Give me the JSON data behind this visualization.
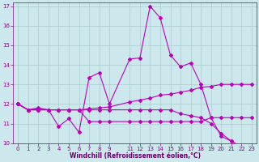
{
  "xlabel": "Windchill (Refroidissement éolien,°C)",
  "background_color": "#cce8ec",
  "line_color": "#bb00bb",
  "grid_color": "#aacccc",
  "xlim": [
    -0.5,
    23.5
  ],
  "ylim": [
    10,
    17.2
  ],
  "yticks": [
    10,
    11,
    12,
    13,
    14,
    15,
    16,
    17
  ],
  "xtick_positions": [
    0,
    1,
    2,
    3,
    4,
    5,
    6,
    7,
    8,
    9,
    11,
    12,
    13,
    14,
    15,
    16,
    17,
    18,
    19,
    20,
    21,
    22,
    23
  ],
  "xtick_labels": [
    "0",
    "1",
    "2",
    "3",
    "4",
    "5",
    "6",
    "7",
    "8",
    "9",
    "11",
    "12",
    "13",
    "14",
    "15",
    "16",
    "17",
    "18",
    "19",
    "20",
    "21",
    "22",
    "23"
  ],
  "line1_x": [
    0,
    1,
    2,
    3,
    4,
    5,
    6,
    7,
    8,
    9,
    11,
    12,
    13,
    14,
    15,
    16,
    17,
    18,
    19,
    20,
    21,
    22,
    23
  ],
  "line1_y": [
    12.0,
    11.7,
    11.8,
    11.7,
    10.85,
    11.25,
    10.55,
    13.35,
    13.6,
    12.0,
    14.3,
    14.35,
    17.0,
    16.4,
    14.5,
    13.9,
    14.1,
    13.0,
    11.3,
    10.35,
    10.1,
    9.8,
    9.5
  ],
  "line2_x": [
    0,
    1,
    2,
    3,
    4,
    5,
    6,
    7,
    8,
    9,
    11,
    12,
    13,
    14,
    15,
    16,
    17,
    18,
    19,
    20,
    21,
    22,
    23
  ],
  "line2_y": [
    12.0,
    11.7,
    11.75,
    11.7,
    11.7,
    11.7,
    11.7,
    11.75,
    11.8,
    11.85,
    12.1,
    12.2,
    12.3,
    12.45,
    12.5,
    12.6,
    12.7,
    12.85,
    12.9,
    13.0,
    13.0,
    13.0,
    13.0
  ],
  "line3_x": [
    0,
    1,
    2,
    3,
    4,
    5,
    6,
    7,
    8,
    9,
    11,
    12,
    13,
    14,
    15,
    16,
    17,
    18,
    19,
    20,
    21,
    22,
    23
  ],
  "line3_y": [
    12.0,
    11.7,
    11.7,
    11.7,
    11.7,
    11.7,
    11.7,
    11.1,
    11.1,
    11.1,
    11.1,
    11.1,
    11.1,
    11.1,
    11.1,
    11.1,
    11.1,
    11.1,
    11.3,
    11.3,
    11.3,
    11.3,
    11.3
  ],
  "line4_x": [
    0,
    1,
    2,
    3,
    4,
    5,
    6,
    7,
    8,
    9,
    11,
    12,
    13,
    14,
    15,
    16,
    17,
    18,
    19,
    20,
    21,
    22,
    23
  ],
  "line4_y": [
    12.0,
    11.7,
    11.7,
    11.7,
    11.7,
    11.7,
    11.7,
    11.7,
    11.7,
    11.7,
    11.7,
    11.7,
    11.7,
    11.7,
    11.7,
    11.5,
    11.4,
    11.3,
    11.0,
    10.5,
    10.1,
    9.8,
    9.5
  ]
}
